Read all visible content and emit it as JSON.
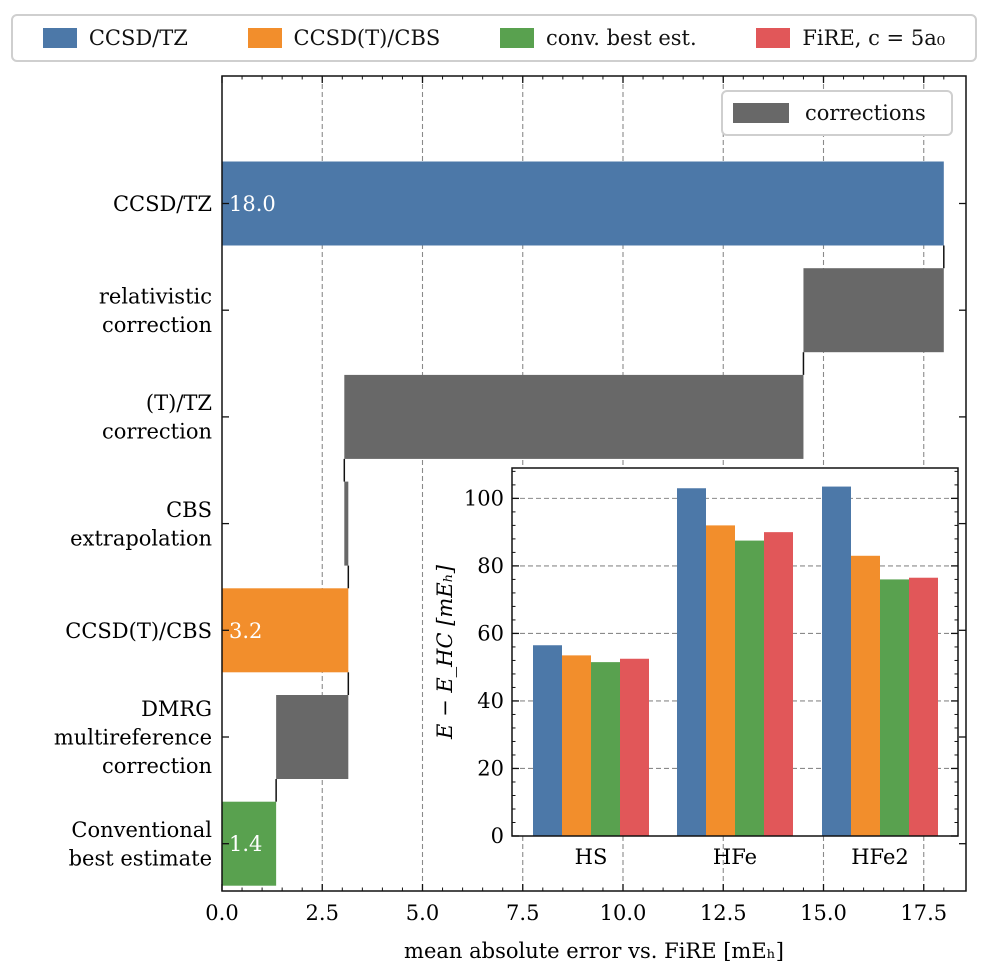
{
  "legend": {
    "items": [
      {
        "label": "CCSD/TZ",
        "color": "#4c78a8"
      },
      {
        "label": "CCSD(T)/CBS",
        "color": "#f28e2c"
      },
      {
        "label": "conv. best est.",
        "color": "#59a14f"
      },
      {
        "label": "FiRE, c = 5a₀",
        "color": "#e15759"
      }
    ],
    "corrections": {
      "label": "corrections",
      "color": "#686868"
    }
  },
  "chart_data": [
    {
      "type": "bar",
      "orientation": "horizontal",
      "xlabel": "mean absolute error vs. FiRE [mEₕ]",
      "xlim": [
        0,
        18.5
      ],
      "xticks": [
        0.0,
        2.5,
        5.0,
        7.5,
        10.0,
        12.5,
        15.0,
        17.5
      ],
      "xtick_labels": [
        "0.0",
        "2.5",
        "5.0",
        "7.5",
        "10.0",
        "12.5",
        "15.0",
        "17.5"
      ],
      "grid": "vertical dashed",
      "categories": [
        [
          "CCSD/TZ"
        ],
        [
          "relativistic",
          "correction"
        ],
        [
          "(T)/TZ",
          "correction"
        ],
        [
          "CBS",
          "extrapolation"
        ],
        [
          "CCSD(T)/CBS"
        ],
        [
          "DMRG",
          "multireference",
          "correction"
        ],
        [
          "Conventional",
          "best estimate"
        ]
      ],
      "bars": [
        {
          "start": 0,
          "end": 18.0,
          "kind": "CCSD/TZ",
          "value_label": "18.0",
          "color": "#4c78a8"
        },
        {
          "start": 14.5,
          "end": 18.0,
          "kind": "correction",
          "value_label": "",
          "color": "#686868"
        },
        {
          "start": 3.05,
          "end": 14.5,
          "kind": "correction",
          "value_label": "",
          "color": "#686868"
        },
        {
          "start": 3.05,
          "end": 3.15,
          "kind": "correction",
          "value_label": "",
          "color": "#686868"
        },
        {
          "start": 0,
          "end": 3.15,
          "kind": "CCSD(T)/CBS",
          "value_label": "3.2",
          "color": "#f28e2c"
        },
        {
          "start": 1.35,
          "end": 3.15,
          "kind": "correction",
          "value_label": "",
          "color": "#686868"
        },
        {
          "start": 0,
          "end": 1.35,
          "kind": "conv. best est.",
          "value_label": "1.4",
          "color": "#59a14f"
        }
      ],
      "legend": "top-right (corrections)"
    },
    {
      "type": "bar",
      "inset": true,
      "ylabel": "E − E_HC [mEₕ]",
      "ylim": [
        0,
        109
      ],
      "yticks": [
        0,
        20,
        40,
        60,
        80,
        100
      ],
      "grid": "horizontal dashed",
      "categories": [
        "HS",
        "HFe",
        "HFe2"
      ],
      "series": [
        {
          "name": "CCSD/TZ",
          "color": "#4c78a8",
          "values": [
            56.5,
            103,
            103.5
          ]
        },
        {
          "name": "CCSD(T)/CBS",
          "color": "#f28e2c",
          "values": [
            53.5,
            92,
            83
          ]
        },
        {
          "name": "conv. best est.",
          "color": "#59a14f",
          "values": [
            51.5,
            87.5,
            76
          ]
        },
        {
          "name": "FiRE, c = 5a₀",
          "color": "#e15759",
          "values": [
            52.5,
            90,
            76.5
          ]
        }
      ]
    }
  ]
}
